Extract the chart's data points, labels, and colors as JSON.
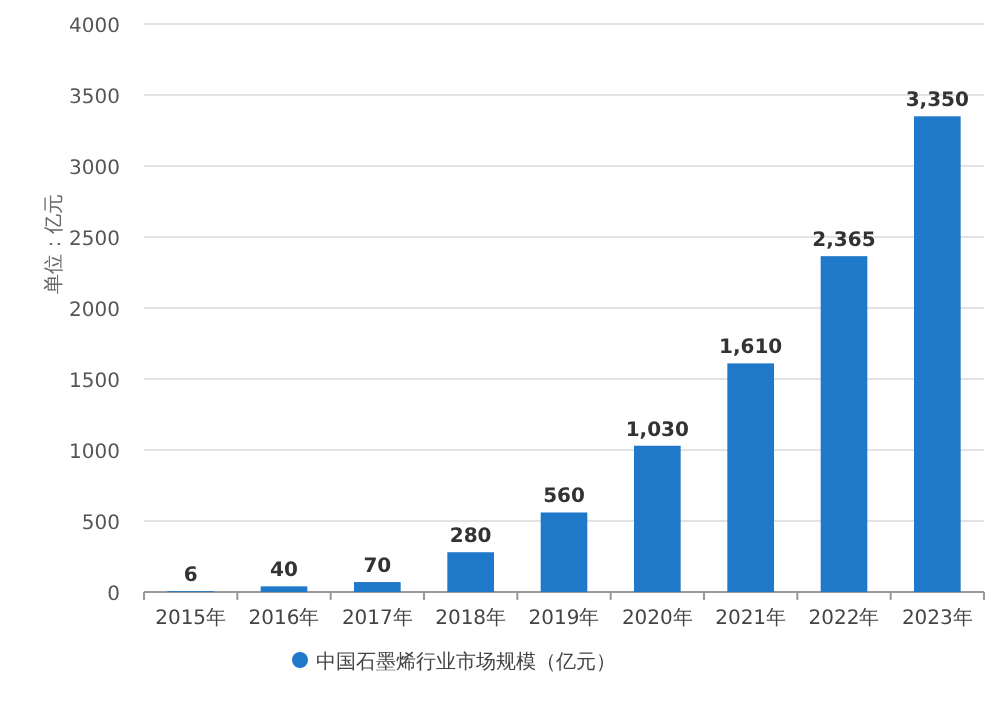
{
  "chart_data": {
    "type": "bar",
    "ylabel": "单位：亿元",
    "categories": [
      "2015年",
      "2016年",
      "2017年",
      "2018年",
      "2019年",
      "2020年",
      "2021年",
      "2022年",
      "2023年"
    ],
    "series": [
      {
        "name": "中国石墨烯行业市场规模（亿元）",
        "color": "#1f78c8",
        "values": [
          6,
          40,
          70,
          280,
          560,
          1030,
          1610,
          2365,
          3350
        ],
        "value_labels": [
          "6",
          "40",
          "70",
          "280",
          "560",
          "1,030",
          "1,610",
          "2,365",
          "3,350"
        ]
      }
    ],
    "ylim": [
      0,
      4000
    ],
    "yticks": [
      0,
      500,
      1000,
      1500,
      2000,
      2500,
      3000,
      3500,
      4000
    ],
    "grid": "y",
    "legend": "bottom"
  }
}
